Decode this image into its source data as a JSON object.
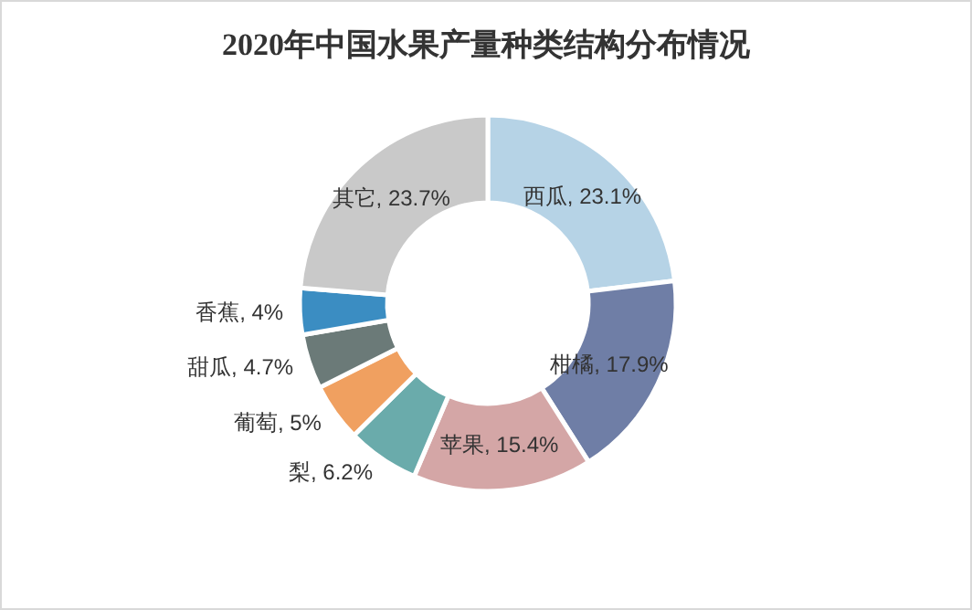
{
  "chart_data": {
    "type": "donut",
    "title": "2020年中国水果产量种类结构分布情况",
    "categories": [
      "西瓜",
      "柑橘",
      "苹果",
      "梨",
      "葡萄",
      "甜瓜",
      "香蕉",
      "其它"
    ],
    "values": [
      23.1,
      17.9,
      15.4,
      6.2,
      5,
      4.7,
      4,
      23.7
    ],
    "colors": [
      "#b6d3e6",
      "#6f7ea6",
      "#d4a6a6",
      "#6aabab",
      "#f0a060",
      "#6b7a78",
      "#3b8dc2",
      "#c9c9c9"
    ],
    "value_labels": [
      ", 23.1%",
      ", 17.9%",
      ", 15.4%",
      ", 6.2%",
      ", 5%",
      ", 4.7%",
      ", 4%",
      ", 23.7%"
    ]
  }
}
